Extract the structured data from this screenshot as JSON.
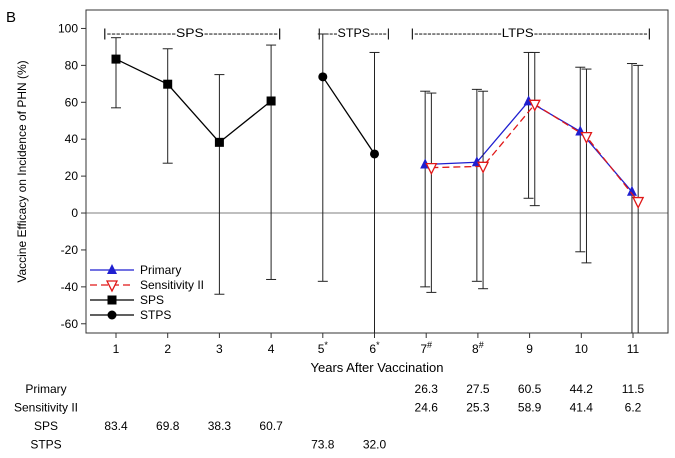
{
  "panel_label": "B",
  "chart_data": {
    "type": "line",
    "title": "",
    "xlabel": "Years After Vaccination",
    "ylabel": "Vaccine Efficacy on Incidence of PHN (%)",
    "ylim": [
      -65,
      110
    ],
    "yticks": [
      -60,
      -40,
      -20,
      0,
      20,
      40,
      60,
      80,
      100
    ],
    "x_categories": [
      {
        "x": 1,
        "label": "1",
        "sup": ""
      },
      {
        "x": 2,
        "label": "2",
        "sup": ""
      },
      {
        "x": 3,
        "label": "3",
        "sup": ""
      },
      {
        "x": 4,
        "label": "4",
        "sup": ""
      },
      {
        "x": 5,
        "label": "5",
        "sup": "*"
      },
      {
        "x": 6,
        "label": "6",
        "sup": "*"
      },
      {
        "x": 7,
        "label": "7",
        "sup": "#"
      },
      {
        "x": 8,
        "label": "8",
        "sup": "#"
      },
      {
        "x": 9,
        "label": "9",
        "sup": ""
      },
      {
        "x": 10,
        "label": "10",
        "sup": ""
      },
      {
        "x": 11,
        "label": "11",
        "sup": ""
      }
    ],
    "reference_line": 0,
    "study_periods": [
      {
        "label": "|---------------SPS----------------|",
        "x_start": 0.75,
        "x_end": 4.2
      },
      {
        "label": "|----STPS----|",
        "x_start": 4.9,
        "x_end": 6.3
      },
      {
        "label": "|--------------------LTPS--------------------------|",
        "x_start": 6.7,
        "x_end": 11.35
      }
    ],
    "series": [
      {
        "name": "Primary",
        "color": "#1f1fd0",
        "marker": "triangle-up",
        "line": "solid",
        "dx": -0.02,
        "points": [
          {
            "x": 7,
            "y": 26.3,
            "lo": -40,
            "hi": 66
          },
          {
            "x": 8,
            "y": 27.5,
            "lo": -37,
            "hi": 67
          },
          {
            "x": 9,
            "y": 60.5,
            "lo": 8,
            "hi": 87
          },
          {
            "x": 10,
            "y": 44.2,
            "lo": -21,
            "hi": 79
          },
          {
            "x": 11,
            "y": 11.5,
            "lo": -65,
            "hi": 81
          }
        ]
      },
      {
        "name": "Sensitivity II",
        "color": "#e01818",
        "marker": "triangle-down-open",
        "line": "dashed",
        "dx": 0.1,
        "points": [
          {
            "x": 7,
            "y": 24.6,
            "lo": -43,
            "hi": 65
          },
          {
            "x": 8,
            "y": 25.3,
            "lo": -41,
            "hi": 66
          },
          {
            "x": 9,
            "y": 58.9,
            "lo": 4,
            "hi": 87
          },
          {
            "x": 10,
            "y": 41.4,
            "lo": -27,
            "hi": 78
          },
          {
            "x": 11,
            "y": 6.2,
            "lo": -65,
            "hi": 80
          }
        ]
      },
      {
        "name": "SPS",
        "color": "#000000",
        "marker": "square",
        "line": "solid",
        "dx": 0,
        "points": [
          {
            "x": 1,
            "y": 83.4,
            "lo": 57,
            "hi": 95
          },
          {
            "x": 2,
            "y": 69.8,
            "lo": 27,
            "hi": 89
          },
          {
            "x": 3,
            "y": 38.3,
            "lo": -44,
            "hi": 75
          },
          {
            "x": 4,
            "y": 60.7,
            "lo": -36,
            "hi": 91
          }
        ]
      },
      {
        "name": "STPS",
        "color": "#000000",
        "marker": "circle",
        "line": "solid",
        "dx": 0,
        "points": [
          {
            "x": 5,
            "y": 73.8,
            "lo": -37,
            "hi": 97
          },
          {
            "x": 6,
            "y": 32.0,
            "lo": -65,
            "hi": 87
          }
        ]
      }
    ],
    "legend_position": "bottom-left",
    "table": {
      "rows": [
        {
          "label": "Primary",
          "values": {
            "7": "26.3",
            "8": "27.5",
            "9": "60.5",
            "10": "44.2",
            "11": "11.5"
          }
        },
        {
          "label": "Sensitivity II",
          "values": {
            "7": "24.6",
            "8": "25.3",
            "9": "58.9",
            "10": "41.4",
            "11": "6.2"
          }
        },
        {
          "label": "SPS",
          "values": {
            "1": "83.4",
            "2": "69.8",
            "3": "38.3",
            "4": "60.7"
          }
        },
        {
          "label": "STPS",
          "values": {
            "5": "73.8",
            "6": "32.0"
          }
        }
      ]
    }
  }
}
